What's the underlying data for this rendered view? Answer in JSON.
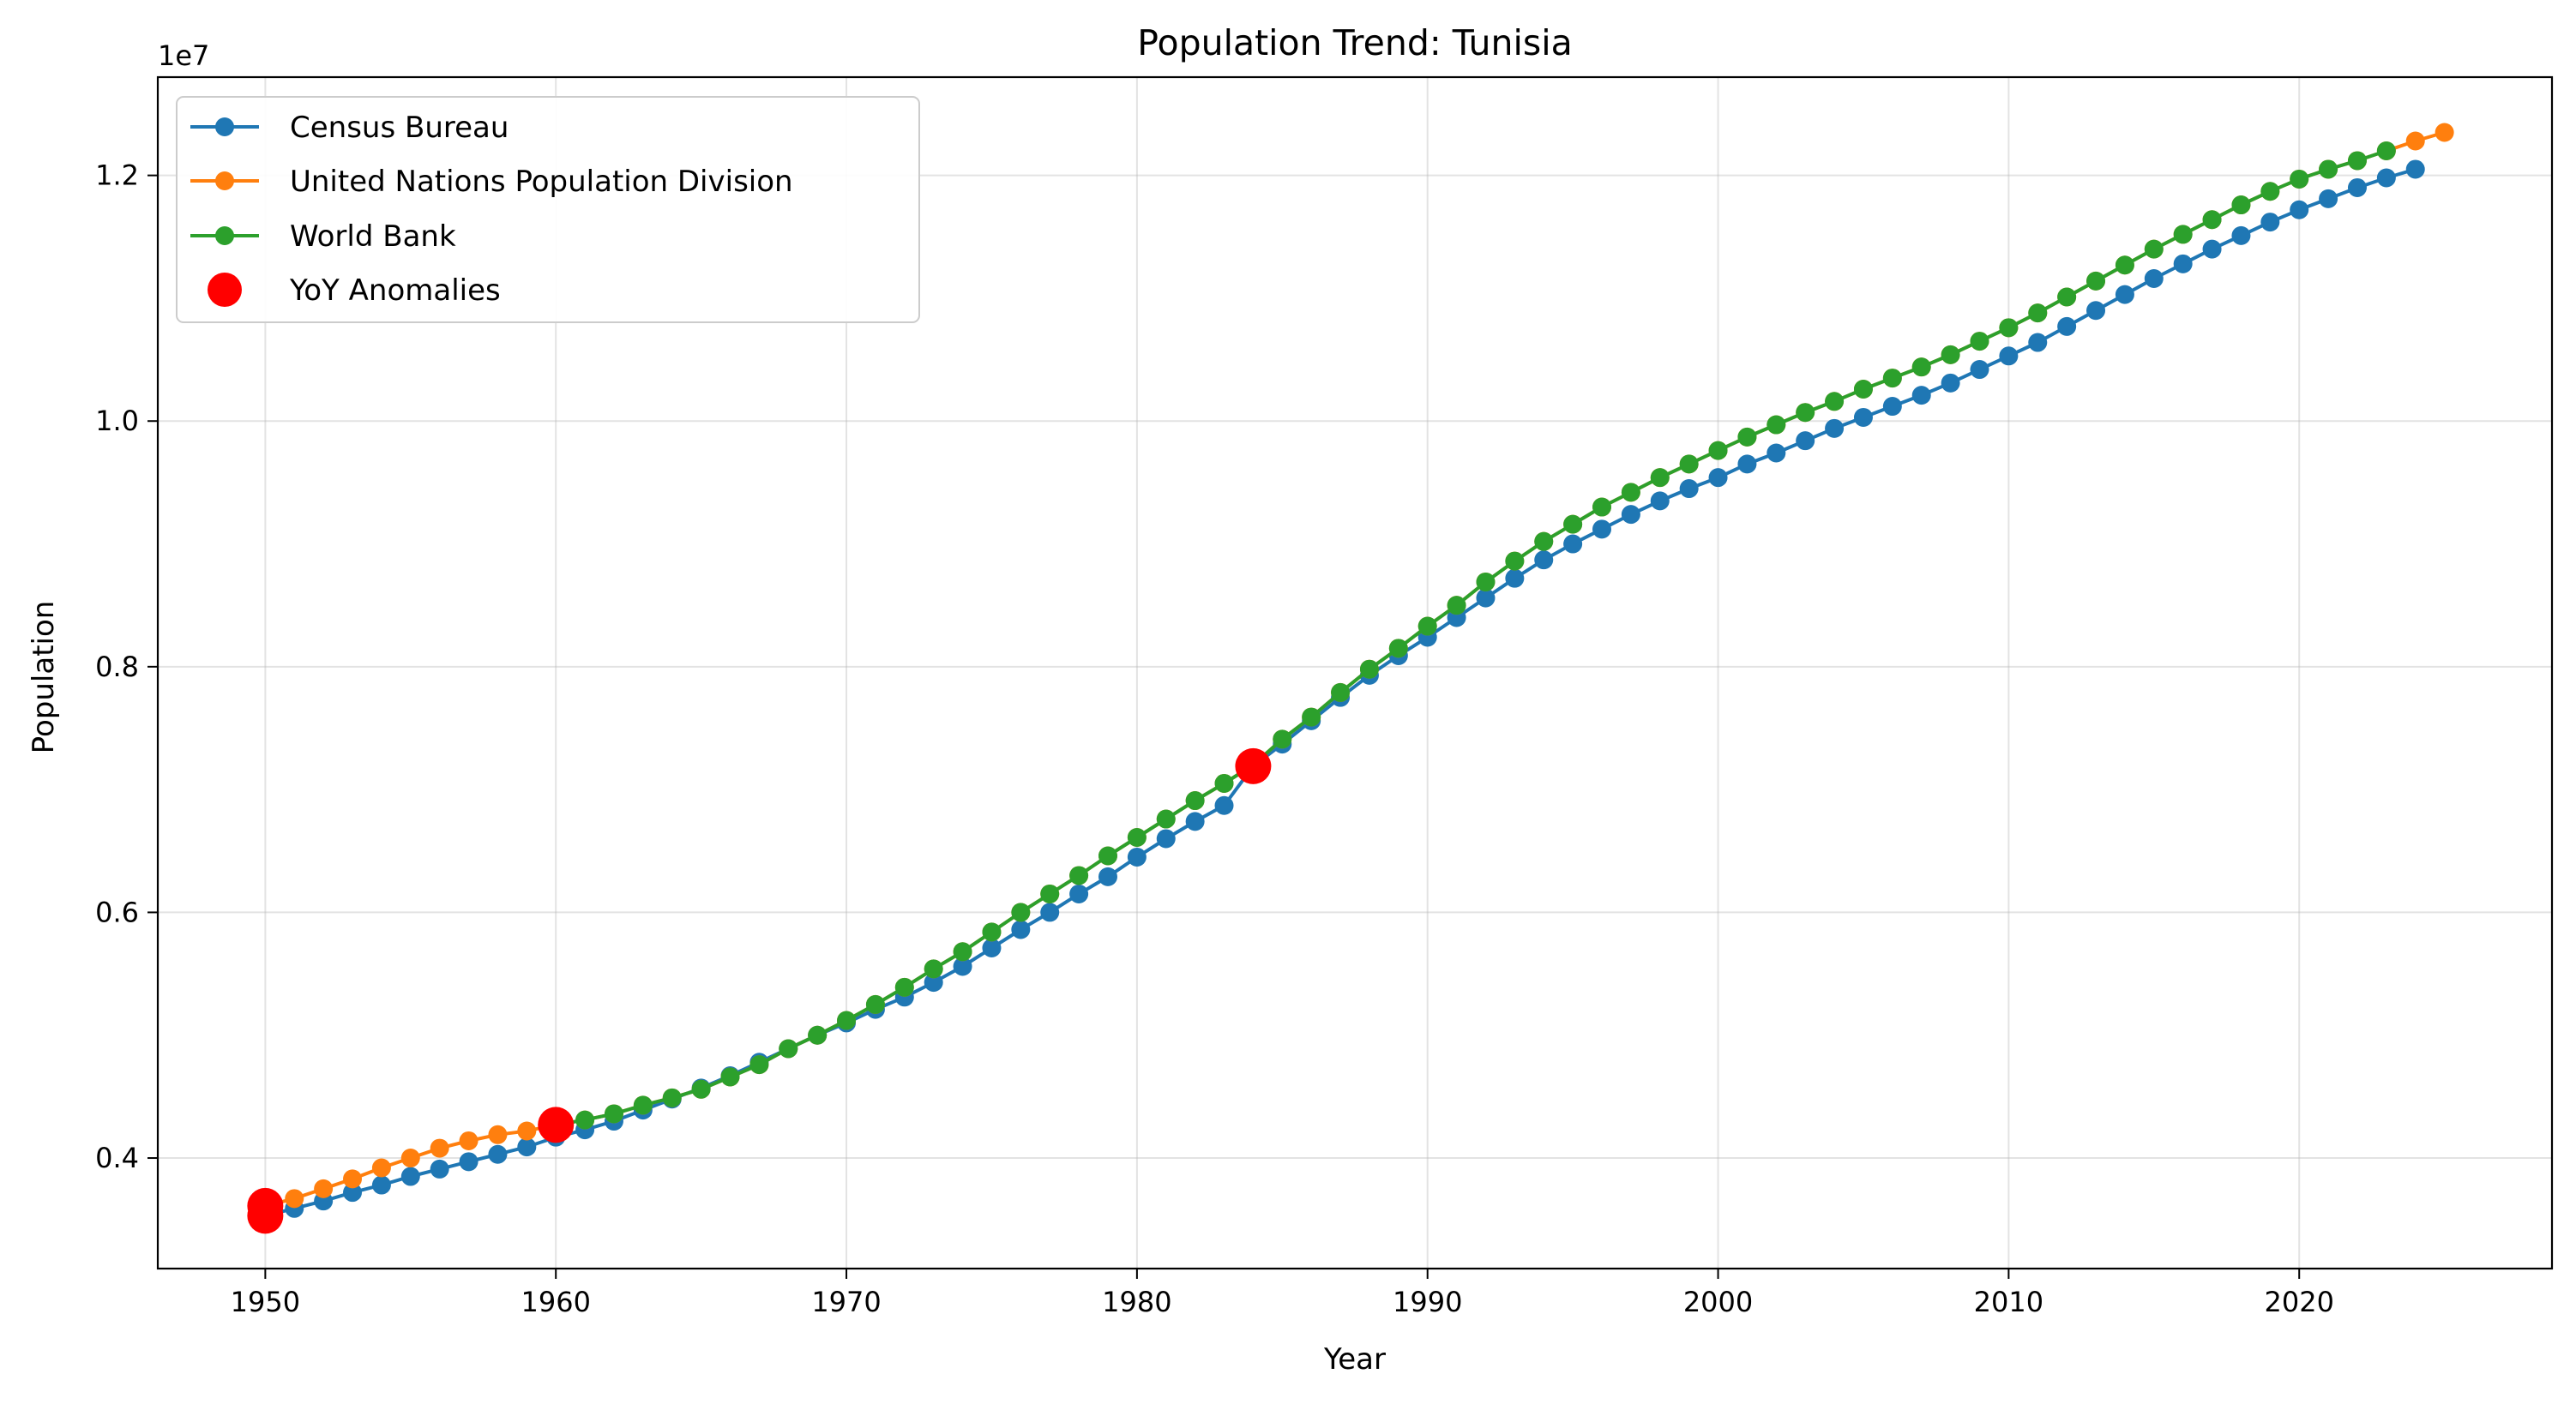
{
  "chart_data": {
    "type": "line",
    "title": "Population Trend: Tunisia",
    "xlabel": "Year",
    "ylabel": "Population",
    "y_offset_label": "1e7",
    "xlim": [
      1946.3,
      2028.7
    ],
    "ylim": [
      3.1,
      12.8
    ],
    "y_unit_scale": 10000000,
    "x_ticks": [
      1950,
      1960,
      1970,
      1980,
      1990,
      2000,
      2010,
      2020
    ],
    "y_ticks": [
      0.4,
      0.6,
      0.8,
      1.0,
      1.2
    ],
    "grid": true,
    "legend_position": "top-left",
    "series": [
      {
        "name": "Census Bureau",
        "color": "#1f77b4",
        "x": [
          1950,
          1951,
          1952,
          1953,
          1954,
          1955,
          1956,
          1957,
          1958,
          1959,
          1960,
          1961,
          1962,
          1963,
          1964,
          1965,
          1966,
          1967,
          1968,
          1969,
          1970,
          1971,
          1972,
          1973,
          1974,
          1975,
          1976,
          1977,
          1978,
          1979,
          1980,
          1981,
          1982,
          1983,
          1984,
          1985,
          1986,
          1987,
          1988,
          1989,
          1990,
          1991,
          1992,
          1993,
          1994,
          1995,
          1996,
          1997,
          1998,
          1999,
          2000,
          2001,
          2002,
          2003,
          2004,
          2005,
          2006,
          2007,
          2008,
          2009,
          2010,
          2011,
          2012,
          2013,
          2014,
          2015,
          2016,
          2017,
          2018,
          2019,
          2020,
          2021,
          2022,
          2023,
          2024
        ],
        "y": [
          3.53,
          3.59,
          3.65,
          3.72,
          3.78,
          3.85,
          3.91,
          3.97,
          4.03,
          4.09,
          4.17,
          4.23,
          4.3,
          4.39,
          4.48,
          4.57,
          4.67,
          4.78,
          4.89,
          5.0,
          5.1,
          5.21,
          5.31,
          5.43,
          5.56,
          5.71,
          5.86,
          6.0,
          6.15,
          6.29,
          6.45,
          6.6,
          6.74,
          6.87,
          7.19,
          7.37,
          7.56,
          7.75,
          7.93,
          8.09,
          8.24,
          8.4,
          8.56,
          8.72,
          8.87,
          9.0,
          9.12,
          9.24,
          9.35,
          9.45,
          9.54,
          9.65,
          9.74,
          9.84,
          9.94,
          10.03,
          10.12,
          10.21,
          10.31,
          10.42,
          10.53,
          10.64,
          10.77,
          10.9,
          11.03,
          11.16,
          11.28,
          11.4,
          11.51,
          11.62,
          11.72,
          11.81,
          11.9,
          11.98,
          12.05
        ]
      },
      {
        "name": "United Nations Population Division",
        "color": "#ff7f0e",
        "x": [
          1950,
          1951,
          1952,
          1953,
          1954,
          1955,
          1956,
          1957,
          1958,
          1959,
          1960,
          1961,
          1962,
          1963,
          1964,
          1965,
          1966,
          1967,
          1968,
          1969,
          1970,
          1971,
          1972,
          1973,
          1974,
          1975,
          1976,
          1977,
          1978,
          1979,
          1980,
          1981,
          1982,
          1983,
          1984,
          1985,
          1986,
          1987,
          1988,
          1989,
          1990,
          1991,
          1992,
          1993,
          1994,
          1995,
          1996,
          1997,
          1998,
          1999,
          2000,
          2001,
          2002,
          2003,
          2004,
          2005,
          2006,
          2007,
          2008,
          2009,
          2010,
          2011,
          2012,
          2013,
          2014,
          2015,
          2016,
          2017,
          2018,
          2019,
          2020,
          2021,
          2022,
          2023,
          2024,
          2025
        ],
        "y": [
          3.61,
          3.67,
          3.75,
          3.83,
          3.92,
          4.0,
          4.08,
          4.14,
          4.19,
          4.22,
          4.27,
          4.31,
          4.36,
          4.43,
          4.49,
          4.56,
          4.66,
          4.76,
          4.89,
          5.0,
          5.12,
          5.25,
          5.39,
          5.54,
          5.68,
          5.84,
          6.0,
          6.15,
          6.3,
          6.46,
          6.61,
          6.76,
          6.91,
          7.05,
          7.2,
          7.41,
          7.59,
          7.79,
          7.98,
          8.15,
          8.33,
          8.5,
          8.69,
          8.86,
          9.02,
          9.16,
          9.3,
          9.42,
          9.54,
          9.65,
          9.76,
          9.87,
          9.97,
          10.07,
          10.16,
          10.26,
          10.35,
          10.44,
          10.54,
          10.65,
          10.76,
          10.88,
          11.01,
          11.14,
          11.27,
          11.4,
          11.52,
          11.64,
          11.76,
          11.87,
          11.97,
          12.05,
          12.12,
          12.2,
          12.28,
          12.35
        ]
      },
      {
        "name": "World Bank",
        "color": "#2ca02c",
        "x": [
          1960,
          1961,
          1962,
          1963,
          1964,
          1965,
          1966,
          1967,
          1968,
          1969,
          1970,
          1971,
          1972,
          1973,
          1974,
          1975,
          1976,
          1977,
          1978,
          1979,
          1980,
          1981,
          1982,
          1983,
          1984,
          1985,
          1986,
          1987,
          1988,
          1989,
          1990,
          1991,
          1992,
          1993,
          1994,
          1995,
          1996,
          1997,
          1998,
          1999,
          2000,
          2001,
          2002,
          2003,
          2004,
          2005,
          2006,
          2007,
          2008,
          2009,
          2010,
          2011,
          2012,
          2013,
          2014,
          2015,
          2016,
          2017,
          2018,
          2019,
          2020,
          2021,
          2022,
          2023
        ],
        "y": [
          4.27,
          4.31,
          4.36,
          4.43,
          4.49,
          4.56,
          4.66,
          4.76,
          4.89,
          5.0,
          5.12,
          5.25,
          5.39,
          5.54,
          5.68,
          5.84,
          6.0,
          6.15,
          6.3,
          6.46,
          6.61,
          6.76,
          6.91,
          7.05,
          7.2,
          7.41,
          7.59,
          7.79,
          7.98,
          8.15,
          8.33,
          8.5,
          8.69,
          8.86,
          9.02,
          9.16,
          9.3,
          9.42,
          9.54,
          9.65,
          9.76,
          9.87,
          9.97,
          10.07,
          10.16,
          10.26,
          10.35,
          10.44,
          10.54,
          10.65,
          10.76,
          10.88,
          11.01,
          11.14,
          11.27,
          11.4,
          11.52,
          11.64,
          11.76,
          11.87,
          11.97,
          12.05,
          12.12,
          12.2
        ]
      }
    ],
    "anomalies": {
      "name": "YoY Anomalies",
      "color": "#ff0000",
      "x": [
        1950,
        1950,
        1960,
        1984
      ],
      "y": [
        3.53,
        3.61,
        4.27,
        7.19
      ]
    }
  }
}
